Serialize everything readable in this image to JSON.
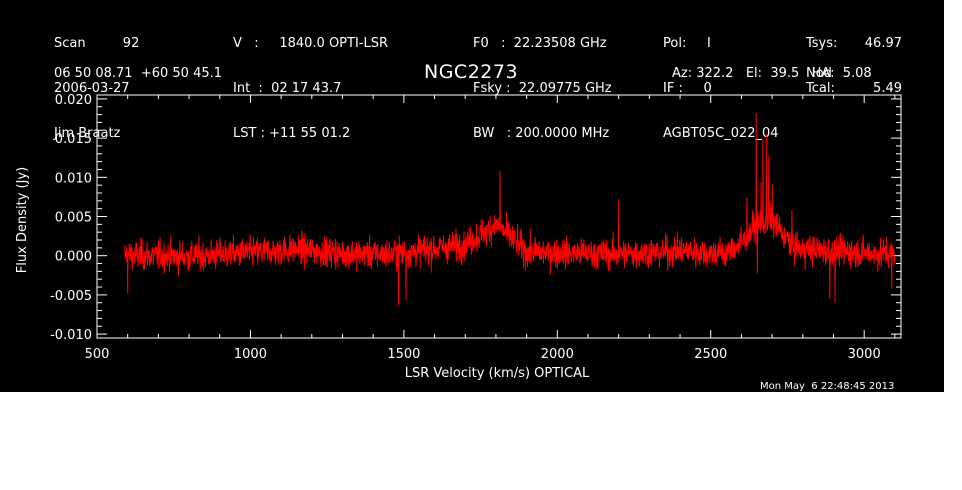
{
  "header": {
    "col1": [
      "Scan         92",
      "2006-03-27",
      "Jim Braatz"
    ],
    "col2": [
      "V   :     1840.0 OPTI-LSR",
      "Int  :  02 17 43.7",
      "LST : +11 55 01.2"
    ],
    "col3": [
      "F0   :  22.23508 GHz",
      "Fsky :  22.09775 GHz",
      "BW   : 200.0000 MHz"
    ],
    "col4": [
      "Pol:     I",
      "IF :     0",
      "AGBT05C_022_04"
    ],
    "col4b": [
      "Nod"
    ],
    "col5": [
      "Tsys:",
      "Tcal:"
    ],
    "col5v": [
      "46.97",
      "5.49"
    ],
    "coords": "06 50 08.71  +60 50 45.1",
    "source": "NGC2273",
    "azel": "Az: 322.2   El:  39.5   HA:  5.08",
    "timestamp": "Mon May  6 22:48:45 2013"
  },
  "chart_data": {
    "type": "line",
    "xlabel": "LSR Velocity (km/s) OPTICAL",
    "ylabel": "Flux Density (Jy)",
    "xlim": [
      500,
      3120
    ],
    "ylim": [
      -0.0105,
      0.0205
    ],
    "xticks": [
      500,
      1000,
      1500,
      2000,
      2500,
      3000
    ],
    "yticks": [
      -0.01,
      -0.005,
      0.0,
      0.005,
      0.01,
      0.015,
      0.02
    ],
    "ytick_labels": [
      "-0.010",
      "-0.005",
      "0.000",
      "0.005",
      "0.010",
      "0.015",
      "0.020"
    ],
    "line_color": "#ff0000",
    "series": [
      {
        "x_range": [
          590,
          3100
        ],
        "n_points": 2500,
        "noise_sigma": 0.0019,
        "baseline": [
          [
            590,
            0.0001
          ],
          [
            800,
            -0.0001
          ],
          [
            1150,
            0.0008
          ],
          [
            1300,
            0.0003
          ],
          [
            1450,
            0.0002
          ],
          [
            1700,
            0.0014
          ],
          [
            1800,
            0.004
          ],
          [
            1900,
            0.0005
          ],
          [
            2200,
            0.0002
          ],
          [
            2400,
            0.0006
          ],
          [
            2550,
            0.0003
          ],
          [
            2600,
            0.0016
          ],
          [
            2650,
            0.004
          ],
          [
            2700,
            0.0045
          ],
          [
            2760,
            0.0015
          ],
          [
            2800,
            0.0008
          ],
          [
            3100,
            0.0002
          ]
        ],
        "peaks": [
          {
            "x": 1813,
            "y": 0.0108
          },
          {
            "x": 2200,
            "y": 0.0072
          },
          {
            "x": 2618,
            "y": 0.0075
          },
          {
            "x": 2648,
            "y": 0.0182
          },
          {
            "x": 2664,
            "y": 0.0095
          },
          {
            "x": 2670,
            "y": 0.0148
          },
          {
            "x": 2681,
            "y": 0.0155
          },
          {
            "x": 2689,
            "y": 0.0128
          },
          {
            "x": 2700,
            "y": 0.0092
          },
          {
            "x": 2765,
            "y": 0.0058
          },
          {
            "x": 600,
            "y": -0.0048
          },
          {
            "x": 1483,
            "y": -0.0064
          },
          {
            "x": 1507,
            "y": -0.0056
          },
          {
            "x": 2652,
            "y": -0.0022
          },
          {
            "x": 2888,
            "y": -0.0055
          },
          {
            "x": 2905,
            "y": -0.006
          },
          {
            "x": 3090,
            "y": -0.0042
          }
        ]
      }
    ]
  }
}
